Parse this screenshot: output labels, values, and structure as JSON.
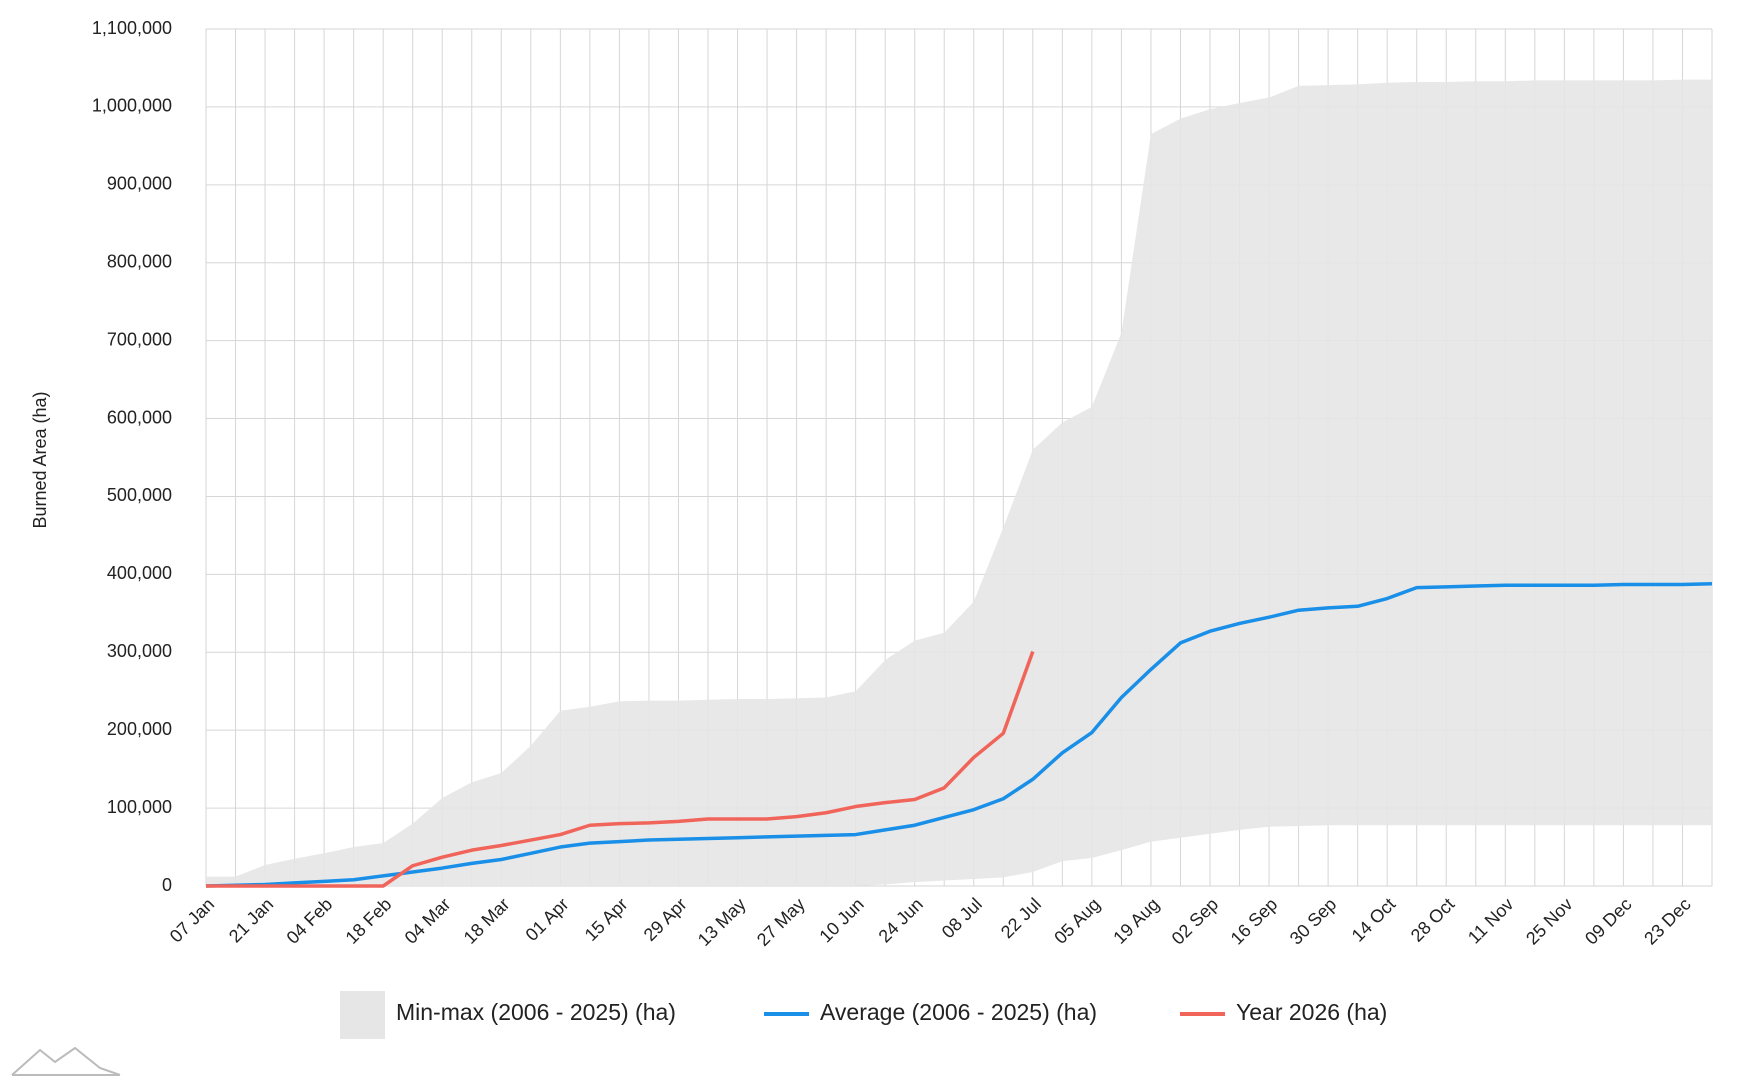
{
  "chart_data": {
    "type": "line",
    "ylabel": "Burned Area (ha)",
    "categories": [
      "07 Jan",
      null,
      "21 Jan",
      null,
      "04 Feb",
      null,
      "18 Feb",
      null,
      "04 Mar",
      null,
      "18 Mar",
      null,
      "01 Apr",
      null,
      "15 Apr",
      null,
      "29 Apr",
      null,
      "13 May",
      null,
      "27 May",
      null,
      "10 Jun",
      null,
      "24 Jun",
      null,
      "08 Jul",
      null,
      "22 Jul",
      null,
      "05 Aug",
      null,
      "19 Aug",
      null,
      "02 Sep",
      null,
      "16 Sep",
      null,
      "30 Sep",
      null,
      "14 Oct",
      null,
      "28 Oct",
      null,
      "11 Nov",
      null,
      "25 Nov",
      null,
      "09 Dec",
      null,
      "23 Dec",
      null
    ],
    "range": {
      "name": "Min-max (2006 - 2025) (ha)",
      "color": "#e6e6e6",
      "low": [
        0,
        0,
        0,
        0,
        0,
        0,
        0,
        0,
        0,
        0,
        0,
        0,
        0,
        0,
        0,
        0,
        0,
        0,
        0,
        0,
        0,
        0,
        0,
        2000,
        5000,
        7000,
        9000,
        11000,
        18000,
        32000,
        36000,
        46000,
        57000,
        62000,
        67000,
        72000,
        76000,
        77000,
        78000,
        78000,
        78000,
        78000,
        78000,
        78000,
        78000,
        78000,
        78000,
        78000,
        78000,
        78000,
        78000,
        78000
      ],
      "high": [
        12000,
        12000,
        27000,
        35000,
        42000,
        50000,
        55000,
        80000,
        113000,
        133000,
        145000,
        180000,
        225000,
        230000,
        237000,
        238000,
        238000,
        239000,
        240000,
        240000,
        241000,
        242000,
        250000,
        290000,
        315000,
        325000,
        365000,
        460000,
        560000,
        595000,
        615000,
        710000,
        965000,
        985000,
        997000,
        1005000,
        1012000,
        1027000,
        1028000,
        1029000,
        1031000,
        1032000,
        1032000,
        1033000,
        1033000,
        1034000,
        1034000,
        1034000,
        1034000,
        1034000,
        1035000,
        1035000
      ]
    },
    "series": [
      {
        "name": "Average (2006 - 2025) (ha)",
        "color": "#1a8fe8",
        "values": [
          0,
          1000,
          2000,
          4000,
          6000,
          8000,
          13000,
          18000,
          23000,
          29000,
          34000,
          42000,
          50000,
          55000,
          57000,
          59000,
          60000,
          61000,
          62000,
          63000,
          64000,
          65000,
          66000,
          72000,
          78000,
          88000,
          98000,
          112000,
          137000,
          171000,
          197000,
          242000,
          278000,
          312000,
          327000,
          337000,
          345000,
          354000,
          357000,
          359000,
          369000,
          383000,
          384000,
          385000,
          386000,
          386000,
          386000,
          386000,
          387000,
          387000,
          387000,
          388000
        ]
      },
      {
        "name": "Year 2026 (ha)",
        "color": "#f0645a",
        "values": [
          0,
          0,
          0,
          0,
          0,
          0,
          0,
          26000,
          37000,
          46000,
          52000,
          59000,
          66000,
          78000,
          80000,
          81000,
          83000,
          86000,
          86000,
          86000,
          89000,
          94000,
          102000,
          107000,
          111000,
          126000,
          165000,
          196000,
          301000,
          null,
          null,
          null,
          null,
          null,
          null,
          null,
          null,
          null,
          null,
          null,
          null,
          null,
          null,
          null,
          null,
          null,
          null,
          null,
          null,
          null,
          null,
          null
        ]
      }
    ],
    "ylim": [
      0,
      1100000
    ],
    "yticks": [
      0,
      {
        "value": 100000,
        "label": "100,000"
      },
      {
        "value": 200000,
        "label": "200,000"
      },
      {
        "value": 300000,
        "label": "300,000"
      },
      {
        "value": 400000,
        "label": "400,000"
      },
      {
        "value": 500000,
        "label": "500,000"
      },
      {
        "value": 600000,
        "label": "600,000"
      },
      {
        "value": 700000,
        "label": "700,000"
      },
      {
        "value": 800000,
        "label": "800,000"
      },
      {
        "value": 900000,
        "label": "900,000"
      },
      {
        "value": 1000000,
        "label": "1,000,000"
      },
      {
        "value": 1100000,
        "label": "1,100,000"
      }
    ],
    "grid": true
  }
}
